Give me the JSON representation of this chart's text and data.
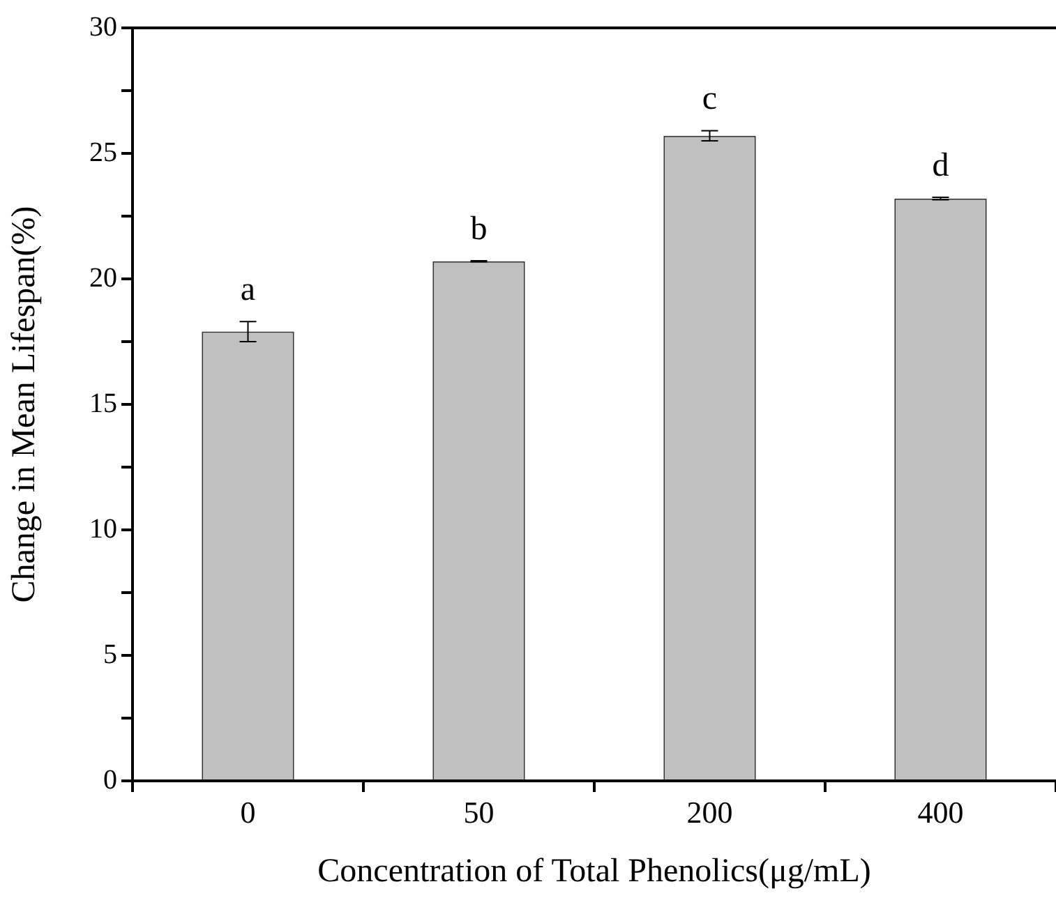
{
  "chart_data": {
    "type": "bar",
    "xlabel": "Concentration of Total Phenolics(μg/mL)",
    "ylabel": "Change in Mean Lifespan(%)",
    "categories": [
      "0",
      "50",
      "200",
      "400"
    ],
    "values": [
      17.9,
      20.7,
      25.7,
      23.2
    ],
    "errors": [
      0.4,
      0.02,
      0.2,
      0.05
    ],
    "color": "#c0c0c0",
    "ylim": [
      0,
      30
    ],
    "yticks": [
      0,
      {
        "value": 2.5,
        "label": null
      },
      5,
      {
        "value": 7.5,
        "label": null
      },
      10,
      {
        "value": 12.5,
        "label": null
      },
      15,
      {
        "value": 17.5,
        "label": null
      },
      20,
      {
        "value": 22.5,
        "label": null
      },
      25,
      {
        "value": 27.5,
        "label": null
      },
      30
    ],
    "annotations": [
      {
        "text": "a",
        "x": "0",
        "y": 18.3
      },
      {
        "text": "b",
        "x": "50",
        "y": 20.72
      },
      {
        "text": "c",
        "x": "200",
        "y": 25.9
      },
      {
        "text": "d",
        "x": "400",
        "y": 23.25
      }
    ],
    "grid": false,
    "legend": false
  }
}
